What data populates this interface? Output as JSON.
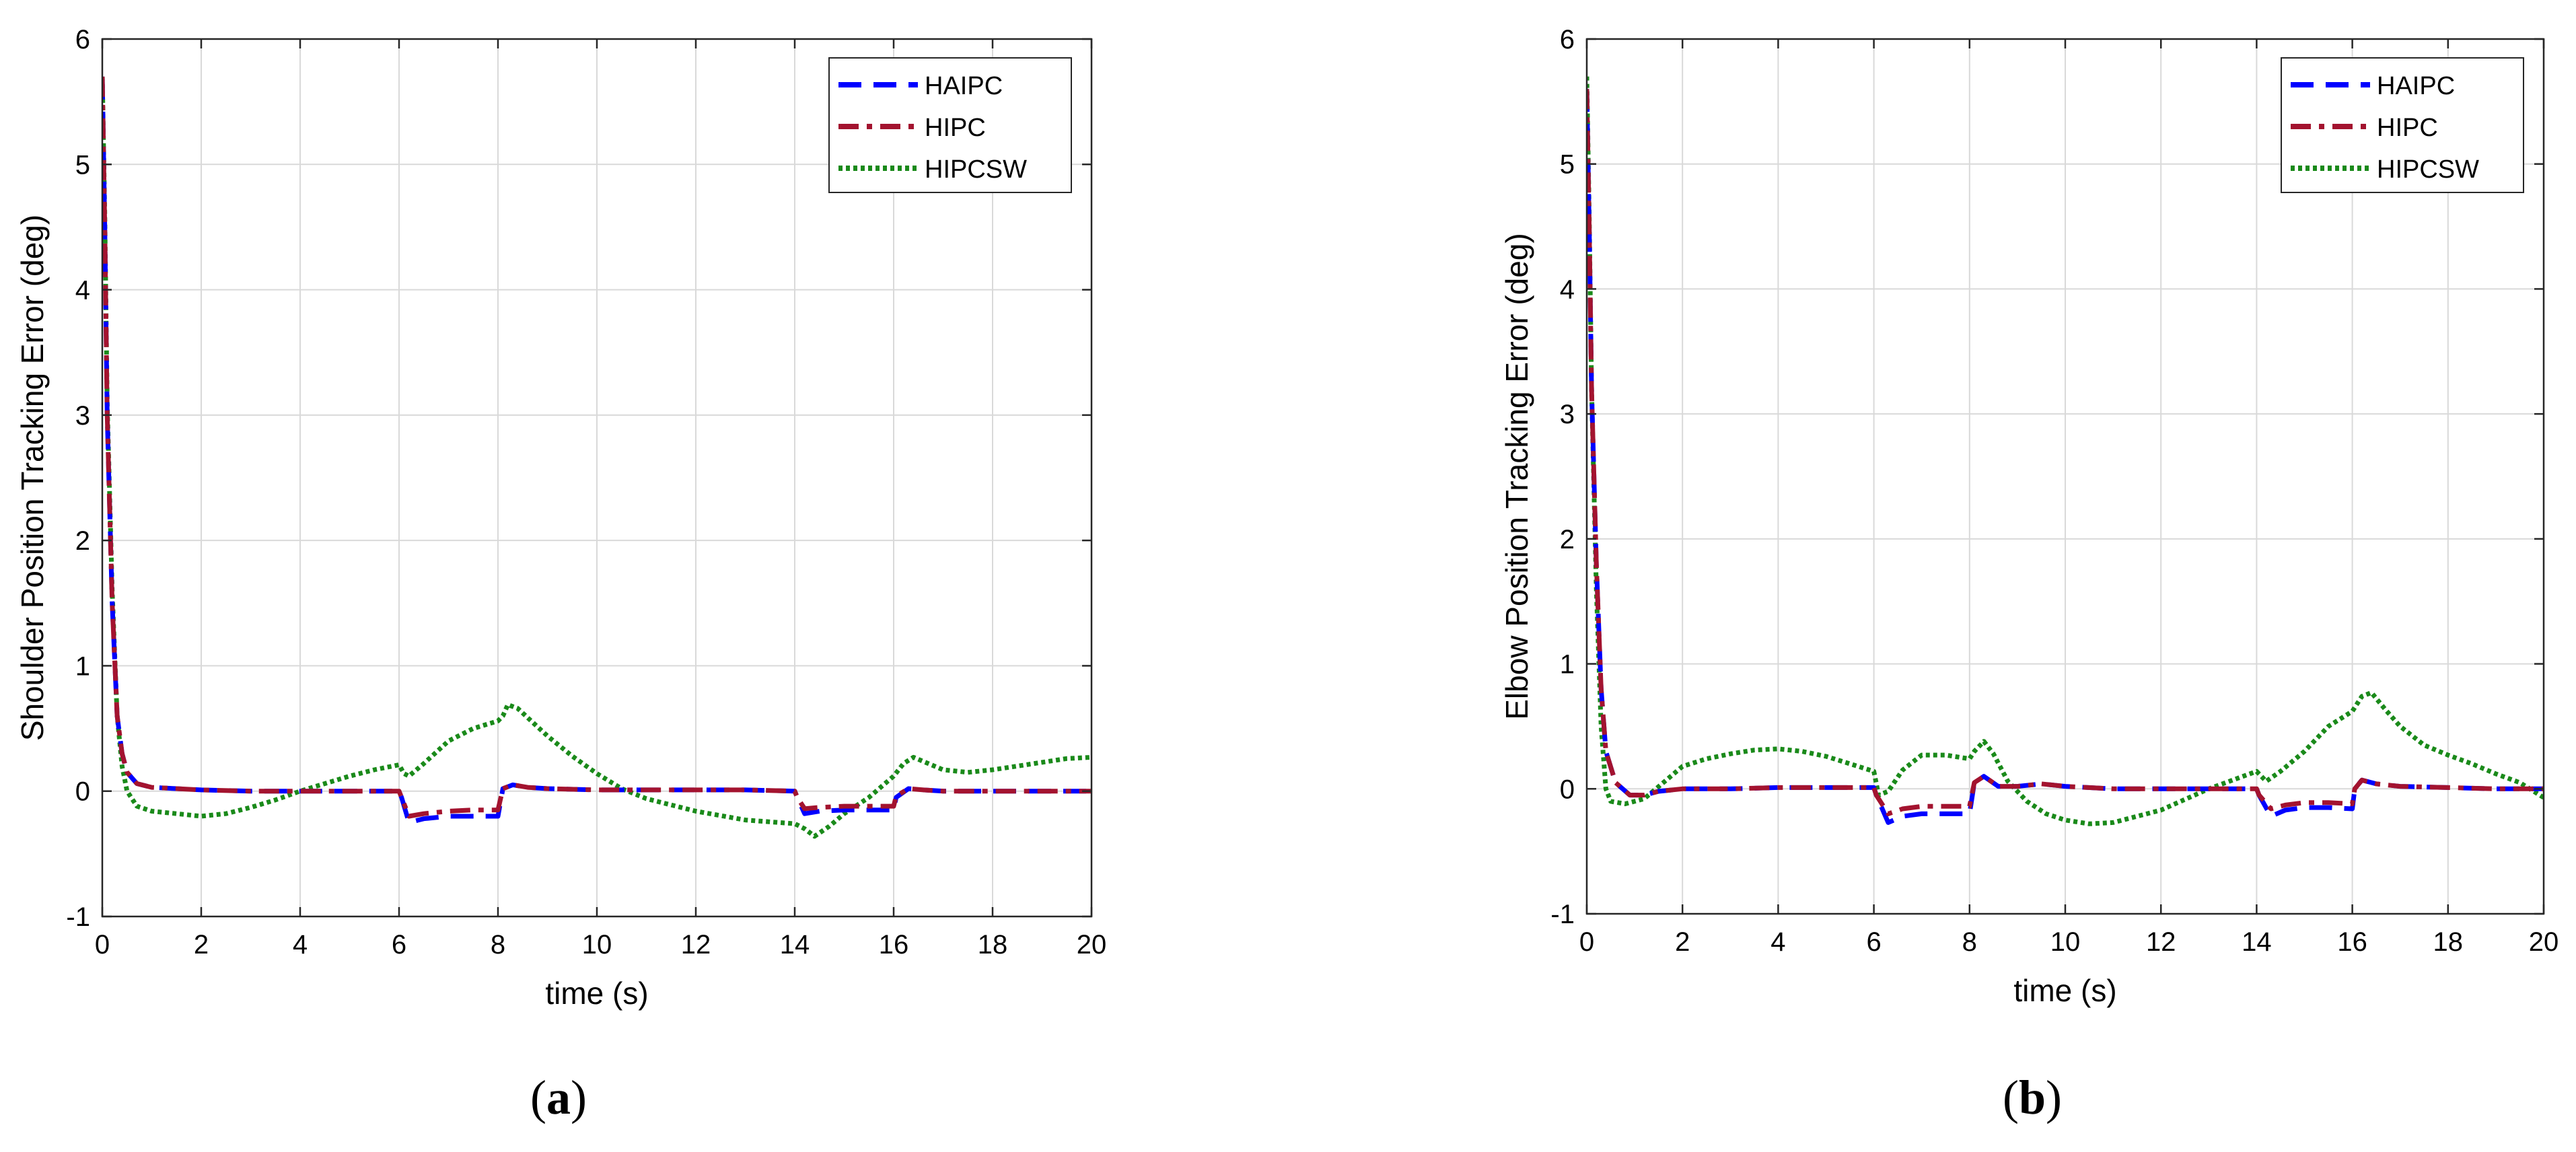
{
  "chart_data": [
    {
      "type": "line",
      "panel_label": "a",
      "xlabel": "time (s)",
      "ylabel": "Shoulder Position Tracking Error (deg)",
      "xlim": [
        0,
        20
      ],
      "ylim": [
        -1,
        6
      ],
      "xticks": [
        0,
        2,
        4,
        6,
        8,
        10,
        12,
        14,
        16,
        18,
        20
      ],
      "yticks": [
        -1,
        0,
        1,
        2,
        3,
        4,
        5,
        6
      ],
      "grid": true,
      "legend_position": "top-right",
      "series": [
        {
          "name": "HAIPC",
          "color": "#0000ff",
          "style": "dashed",
          "x": [
            0,
            0.05,
            0.1,
            0.2,
            0.3,
            0.4,
            0.5,
            0.7,
            1.0,
            1.5,
            2,
            3,
            4,
            5,
            6,
            6.05,
            6.2,
            6.5,
            7,
            7.5,
            8,
            8.1,
            8.3,
            8.6,
            9,
            10,
            11,
            12,
            13,
            14,
            14.05,
            14.2,
            14.5,
            15,
            15.5,
            16,
            16.05,
            16.3,
            16.6,
            17,
            18,
            19,
            20
          ],
          "values": [
            5.7,
            4.5,
            3.0,
            1.5,
            0.6,
            0.3,
            0.15,
            0.06,
            0.03,
            0.02,
            0.01,
            0.0,
            0.0,
            0.0,
            0.0,
            -0.05,
            -0.25,
            -0.22,
            -0.2,
            -0.2,
            -0.2,
            0.02,
            0.05,
            0.03,
            0.02,
            0.01,
            0.01,
            0.01,
            0.01,
            0.0,
            -0.05,
            -0.18,
            -0.16,
            -0.15,
            -0.15,
            -0.15,
            -0.05,
            0.02,
            0.01,
            0.0,
            0.0,
            0.0,
            0.0
          ]
        },
        {
          "name": "HIPC",
          "color": "#a3132f",
          "style": "dashdot",
          "x": [
            0,
            0.05,
            0.1,
            0.2,
            0.3,
            0.4,
            0.5,
            0.7,
            1.0,
            1.5,
            2,
            3,
            4,
            5,
            6,
            6.05,
            6.2,
            6.5,
            7,
            7.5,
            8,
            8.1,
            8.3,
            8.6,
            9,
            10,
            11,
            12,
            13,
            14,
            14.05,
            14.2,
            14.5,
            15,
            15.5,
            16,
            16.05,
            16.3,
            16.6,
            17,
            18,
            19,
            20
          ],
          "values": [
            5.7,
            4.5,
            3.0,
            1.5,
            0.6,
            0.3,
            0.15,
            0.06,
            0.03,
            0.02,
            0.01,
            0.0,
            0.0,
            0.0,
            0.0,
            -0.05,
            -0.2,
            -0.18,
            -0.16,
            -0.15,
            -0.15,
            0.02,
            0.05,
            0.03,
            0.02,
            0.01,
            0.01,
            0.01,
            0.01,
            0.0,
            -0.05,
            -0.14,
            -0.13,
            -0.12,
            -0.12,
            -0.12,
            -0.04,
            0.02,
            0.01,
            0.0,
            0.0,
            0.0,
            0.0
          ]
        },
        {
          "name": "HIPCSW",
          "color": "#1a8a1a",
          "style": "dotted",
          "x": [
            0,
            0.05,
            0.1,
            0.2,
            0.3,
            0.4,
            0.5,
            0.7,
            1.0,
            1.5,
            2.0,
            2.5,
            3,
            3.5,
            4,
            4.5,
            5,
            5.5,
            6.0,
            6.1,
            6.2,
            6.5,
            7,
            7.5,
            8.0,
            8.1,
            8.2,
            8.4,
            8.7,
            9,
            9.5,
            10,
            10.5,
            11,
            12,
            13,
            14.0,
            14.2,
            14.4,
            14.7,
            15,
            15.5,
            16.0,
            16.2,
            16.4,
            16.7,
            17,
            17.5,
            18,
            18.5,
            19,
            19.5,
            20
          ],
          "values": [
            5.7,
            4.6,
            3.1,
            1.6,
            0.6,
            0.2,
            0.0,
            -0.12,
            -0.16,
            -0.18,
            -0.2,
            -0.18,
            -0.13,
            -0.07,
            0.0,
            0.06,
            0.12,
            0.17,
            0.21,
            0.14,
            0.12,
            0.22,
            0.4,
            0.5,
            0.56,
            0.6,
            0.69,
            0.66,
            0.55,
            0.44,
            0.28,
            0.14,
            0.02,
            -0.06,
            -0.16,
            -0.23,
            -0.26,
            -0.3,
            -0.36,
            -0.28,
            -0.18,
            -0.05,
            0.12,
            0.22,
            0.27,
            0.22,
            0.17,
            0.15,
            0.17,
            0.2,
            0.23,
            0.26,
            0.27
          ]
        }
      ]
    },
    {
      "type": "line",
      "panel_label": "b",
      "xlabel": "time (s)",
      "ylabel": "Elbow Position Tracking Error (deg)",
      "xlim": [
        0,
        20
      ],
      "ylim": [
        -1,
        6
      ],
      "xticks": [
        0,
        2,
        4,
        6,
        8,
        10,
        12,
        14,
        16,
        18,
        20
      ],
      "yticks": [
        -1,
        0,
        1,
        2,
        3,
        4,
        5,
        6
      ],
      "grid": true,
      "legend_position": "top-right",
      "series": [
        {
          "name": "HAIPC",
          "color": "#0000ff",
          "style": "dashed",
          "x": [
            0,
            0.05,
            0.1,
            0.2,
            0.3,
            0.4,
            0.6,
            0.9,
            1.2,
            1.5,
            2,
            3,
            4,
            5,
            6,
            6.05,
            6.3,
            6.6,
            7,
            7.5,
            8,
            8.1,
            8.3,
            8.6,
            9,
            9.5,
            10,
            11,
            12,
            13,
            14,
            14.05,
            14.3,
            14.6,
            15,
            15.5,
            16,
            16.05,
            16.2,
            16.5,
            17,
            18,
            19,
            20
          ],
          "values": [
            5.6,
            4.5,
            3.2,
            1.8,
            0.8,
            0.3,
            0.05,
            -0.05,
            -0.05,
            -0.02,
            0.0,
            0.0,
            0.01,
            0.01,
            0.01,
            -0.05,
            -0.27,
            -0.22,
            -0.2,
            -0.2,
            -0.2,
            0.05,
            0.1,
            0.02,
            0.02,
            0.04,
            0.02,
            0.0,
            0.0,
            0.0,
            0.0,
            -0.05,
            -0.22,
            -0.17,
            -0.15,
            -0.15,
            -0.16,
            0.0,
            0.07,
            0.04,
            0.02,
            0.01,
            0.0,
            0.0
          ]
        },
        {
          "name": "HIPC",
          "color": "#a3132f",
          "style": "dashdot",
          "x": [
            0,
            0.05,
            0.1,
            0.2,
            0.3,
            0.4,
            0.6,
            0.9,
            1.2,
            1.5,
            2,
            3,
            4,
            5,
            6,
            6.05,
            6.3,
            6.6,
            7,
            7.5,
            8,
            8.1,
            8.3,
            8.6,
            9,
            9.5,
            10,
            11,
            12,
            13,
            14,
            14.05,
            14.3,
            14.6,
            15,
            15.5,
            16,
            16.05,
            16.2,
            16.5,
            17,
            18,
            19,
            20
          ],
          "values": [
            5.6,
            4.5,
            3.2,
            1.8,
            0.8,
            0.3,
            0.05,
            -0.05,
            -0.05,
            -0.02,
            0.0,
            0.0,
            0.01,
            0.01,
            0.01,
            -0.05,
            -0.2,
            -0.16,
            -0.14,
            -0.14,
            -0.14,
            0.05,
            0.1,
            0.02,
            0.02,
            0.04,
            0.02,
            0.0,
            0.0,
            0.0,
            0.0,
            -0.05,
            -0.16,
            -0.13,
            -0.11,
            -0.11,
            -0.12,
            0.0,
            0.07,
            0.04,
            0.02,
            0.01,
            0.0,
            0.0
          ]
        },
        {
          "name": "HIPCSW",
          "color": "#1a8a1a",
          "style": "dotted",
          "x": [
            0,
            0.05,
            0.1,
            0.2,
            0.3,
            0.4,
            0.5,
            0.8,
            1.2,
            1.6,
            2.0,
            2.5,
            3,
            3.5,
            4,
            4.5,
            5,
            5.5,
            6.0,
            6.1,
            6.3,
            6.6,
            7,
            7.5,
            8.0,
            8.1,
            8.3,
            8.5,
            8.8,
            9.2,
            9.6,
            10,
            10.5,
            11,
            12,
            13,
            14.0,
            14.2,
            14.5,
            15,
            15.5,
            16.0,
            16.2,
            16.4,
            16.7,
            17,
            17.5,
            18,
            18.5,
            19,
            19.5,
            20
          ],
          "values": [
            5.7,
            4.6,
            3.2,
            1.6,
            0.5,
            0.0,
            -0.1,
            -0.12,
            -0.08,
            0.05,
            0.18,
            0.24,
            0.28,
            0.31,
            0.32,
            0.3,
            0.26,
            0.2,
            0.14,
            -0.05,
            -0.02,
            0.15,
            0.27,
            0.27,
            0.24,
            0.3,
            0.38,
            0.28,
            0.06,
            -0.1,
            -0.2,
            -0.25,
            -0.28,
            -0.27,
            -0.17,
            0.0,
            0.14,
            0.06,
            0.14,
            0.3,
            0.5,
            0.62,
            0.74,
            0.77,
            0.63,
            0.5,
            0.35,
            0.27,
            0.2,
            0.12,
            0.05,
            -0.07
          ]
        }
      ]
    }
  ]
}
